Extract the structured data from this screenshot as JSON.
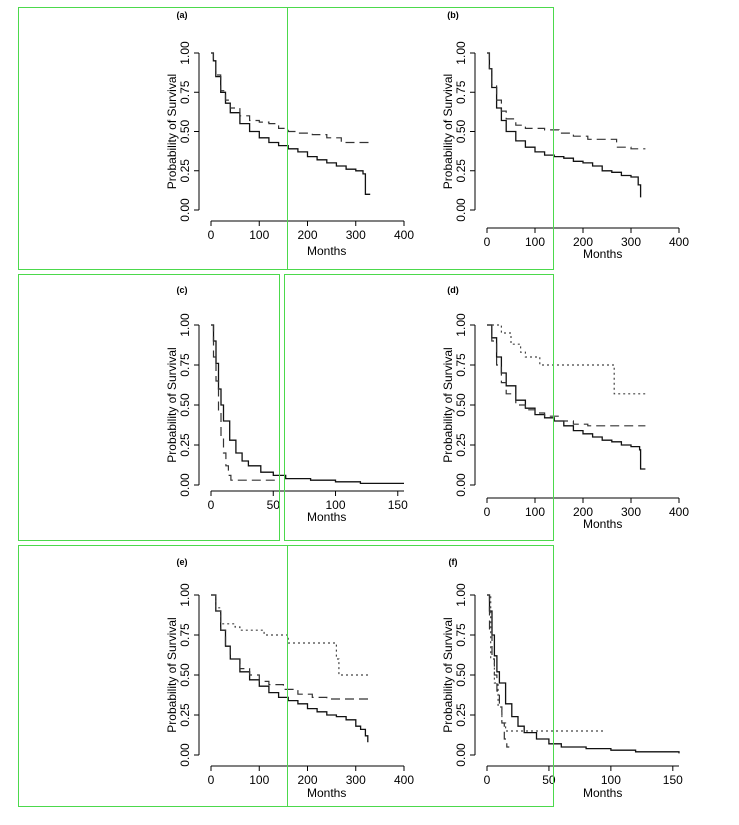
{
  "chart_data": [
    {
      "type": "line",
      "panel_label": "(a)",
      "ylabel": "Probability of Survival",
      "xlabel": "Months",
      "xlim": [
        0,
        400
      ],
      "ylim": [
        0,
        1
      ],
      "xticks": [
        "0",
        "100",
        "200",
        "300",
        "400"
      ],
      "yticks": [
        "0.00",
        "0.25",
        "0.50",
        "0.75",
        "1.00"
      ],
      "series": [
        {
          "name": "solid",
          "style": "solid",
          "x": [
            0,
            5,
            10,
            20,
            30,
            40,
            60,
            80,
            100,
            120,
            140,
            160,
            180,
            200,
            220,
            240,
            260,
            280,
            300,
            315,
            320,
            330
          ],
          "y": [
            1.0,
            0.95,
            0.85,
            0.75,
            0.68,
            0.62,
            0.55,
            0.5,
            0.46,
            0.43,
            0.41,
            0.39,
            0.37,
            0.34,
            0.32,
            0.3,
            0.28,
            0.26,
            0.25,
            0.23,
            0.1,
            0.1
          ]
        },
        {
          "name": "dashed",
          "style": "dashed",
          "x": [
            0,
            5,
            10,
            20,
            30,
            40,
            60,
            80,
            100,
            120,
            140,
            160,
            180,
            210,
            240,
            270,
            300,
            330
          ],
          "y": [
            1.0,
            0.95,
            0.86,
            0.76,
            0.7,
            0.65,
            0.6,
            0.57,
            0.56,
            0.55,
            0.52,
            0.5,
            0.49,
            0.48,
            0.46,
            0.43,
            0.43,
            0.43
          ]
        }
      ]
    },
    {
      "type": "line",
      "panel_label": "(b)",
      "ylabel": "Probability of Survival",
      "xlabel": "Months",
      "xlim": [
        0,
        400
      ],
      "ylim": [
        0,
        1
      ],
      "xticks": [
        "0",
        "100",
        "200",
        "300",
        "400"
      ],
      "yticks": [
        "0.00",
        "0.25",
        "0.50",
        "0.75",
        "1.00"
      ],
      "series": [
        {
          "name": "solid",
          "style": "solid",
          "x": [
            0,
            5,
            10,
            20,
            30,
            40,
            60,
            80,
            100,
            120,
            140,
            160,
            180,
            200,
            220,
            240,
            260,
            280,
            300,
            315,
            320
          ],
          "y": [
            1.0,
            0.9,
            0.78,
            0.65,
            0.57,
            0.5,
            0.44,
            0.4,
            0.37,
            0.35,
            0.34,
            0.33,
            0.31,
            0.3,
            0.28,
            0.25,
            0.24,
            0.22,
            0.21,
            0.16,
            0.08
          ]
        },
        {
          "name": "dashed",
          "style": "dashed",
          "x": [
            0,
            5,
            10,
            20,
            30,
            40,
            60,
            80,
            100,
            120,
            150,
            180,
            210,
            240,
            270,
            300,
            330
          ],
          "y": [
            1.0,
            0.9,
            0.8,
            0.7,
            0.63,
            0.58,
            0.54,
            0.52,
            0.52,
            0.51,
            0.49,
            0.47,
            0.45,
            0.45,
            0.4,
            0.39,
            0.39
          ]
        }
      ]
    },
    {
      "type": "line",
      "panel_label": "(c)",
      "ylabel": "Probability of Survival",
      "xlabel": "Months",
      "xlim": [
        0,
        155
      ],
      "ylim": [
        0,
        1
      ],
      "xticks": [
        "0",
        "50",
        "100",
        "150"
      ],
      "yticks": [
        "0.00",
        "0.25",
        "0.50",
        "0.75",
        "1.00"
      ],
      "series": [
        {
          "name": "solid",
          "style": "solid",
          "x": [
            0,
            2,
            4,
            6,
            8,
            10,
            15,
            20,
            25,
            30,
            40,
            50,
            60,
            80,
            100,
            120,
            155
          ],
          "y": [
            1.0,
            0.9,
            0.76,
            0.6,
            0.5,
            0.4,
            0.28,
            0.2,
            0.15,
            0.12,
            0.08,
            0.06,
            0.04,
            0.03,
            0.02,
            0.01,
            0.01
          ]
        },
        {
          "name": "dashed",
          "style": "dashed",
          "x": [
            0,
            2,
            4,
            6,
            8,
            10,
            12,
            14,
            16,
            55
          ],
          "y": [
            1.0,
            0.8,
            0.65,
            0.45,
            0.3,
            0.2,
            0.12,
            0.06,
            0.03,
            0.03
          ]
        }
      ]
    },
    {
      "type": "line",
      "panel_label": "(d)",
      "ylabel": "Probability of Survival",
      "xlabel": "Months",
      "xlim": [
        0,
        400
      ],
      "ylim": [
        0,
        1
      ],
      "xticks": [
        "0",
        "100",
        "200",
        "300",
        "400"
      ],
      "yticks": [
        "0.00",
        "0.25",
        "0.50",
        "0.75",
        "1.00"
      ],
      "series": [
        {
          "name": "solid",
          "style": "solid",
          "x": [
            0,
            10,
            20,
            30,
            40,
            60,
            80,
            100,
            120,
            140,
            160,
            180,
            200,
            220,
            240,
            260,
            280,
            300,
            318,
            320,
            330
          ],
          "y": [
            1.0,
            0.92,
            0.8,
            0.7,
            0.62,
            0.53,
            0.48,
            0.44,
            0.42,
            0.4,
            0.37,
            0.34,
            0.32,
            0.3,
            0.28,
            0.27,
            0.25,
            0.24,
            0.22,
            0.1,
            0.1
          ]
        },
        {
          "name": "dashed",
          "style": "dashed",
          "x": [
            0,
            10,
            20,
            30,
            40,
            60,
            80,
            100,
            120,
            150,
            180,
            210,
            240,
            270,
            300,
            330
          ],
          "y": [
            1.0,
            0.9,
            0.75,
            0.64,
            0.57,
            0.5,
            0.47,
            0.45,
            0.43,
            0.4,
            0.38,
            0.37,
            0.37,
            0.37,
            0.37,
            0.37
          ]
        },
        {
          "name": "dotted",
          "style": "dotted",
          "x": [
            0,
            20,
            30,
            40,
            50,
            60,
            70,
            80,
            100,
            110,
            120,
            150,
            200,
            250,
            260,
            265,
            300,
            330
          ],
          "y": [
            1.0,
            1.0,
            0.95,
            0.95,
            0.88,
            0.88,
            0.83,
            0.8,
            0.8,
            0.75,
            0.75,
            0.75,
            0.75,
            0.75,
            0.75,
            0.57,
            0.57,
            0.57
          ]
        }
      ]
    },
    {
      "type": "line",
      "panel_label": "(e)",
      "ylabel": "Probability of Survival",
      "xlabel": "Months",
      "xlim": [
        0,
        400
      ],
      "ylim": [
        0,
        1
      ],
      "xticks": [
        "0",
        "100",
        "200",
        "300",
        "400"
      ],
      "yticks": [
        "0.00",
        "0.25",
        "0.50",
        "0.75",
        "1.00"
      ],
      "series": [
        {
          "name": "solid",
          "style": "solid",
          "x": [
            0,
            10,
            20,
            30,
            40,
            60,
            80,
            100,
            120,
            140,
            160,
            180,
            200,
            220,
            240,
            260,
            280,
            300,
            310,
            320,
            325
          ],
          "y": [
            1.0,
            0.9,
            0.78,
            0.68,
            0.6,
            0.52,
            0.47,
            0.43,
            0.39,
            0.36,
            0.34,
            0.32,
            0.29,
            0.27,
            0.25,
            0.24,
            0.22,
            0.18,
            0.16,
            0.12,
            0.08
          ]
        },
        {
          "name": "dashed",
          "style": "dashed",
          "x": [
            0,
            10,
            20,
            30,
            40,
            60,
            80,
            100,
            120,
            150,
            180,
            210,
            240,
            270,
            300,
            330
          ],
          "y": [
            1.0,
            0.9,
            0.78,
            0.68,
            0.6,
            0.54,
            0.5,
            0.46,
            0.44,
            0.41,
            0.38,
            0.36,
            0.35,
            0.35,
            0.35,
            0.35
          ]
        },
        {
          "name": "dotted",
          "style": "dotted",
          "x": [
            0,
            10,
            20,
            50,
            60,
            100,
            110,
            150,
            160,
            200,
            250,
            260,
            265,
            300,
            330
          ],
          "y": [
            1.0,
            0.92,
            0.82,
            0.8,
            0.78,
            0.78,
            0.75,
            0.75,
            0.7,
            0.7,
            0.7,
            0.6,
            0.5,
            0.5,
            0.5
          ]
        }
      ]
    },
    {
      "type": "line",
      "panel_label": "(f)",
      "ylabel": "Probability of Survival",
      "xlabel": "Months",
      "xlim": [
        0,
        155
      ],
      "ylim": [
        0,
        1
      ],
      "xticks": [
        "0",
        "50",
        "100",
        "150"
      ],
      "yticks": [
        "0.00",
        "0.25",
        "0.50",
        "0.75",
        "1.00"
      ],
      "series": [
        {
          "name": "solid",
          "style": "solid",
          "x": [
            0,
            2,
            4,
            6,
            8,
            10,
            15,
            20,
            25,
            30,
            40,
            50,
            60,
            80,
            100,
            120,
            155
          ],
          "y": [
            1.0,
            0.9,
            0.75,
            0.62,
            0.52,
            0.45,
            0.32,
            0.24,
            0.18,
            0.14,
            0.1,
            0.07,
            0.05,
            0.04,
            0.03,
            0.02,
            0.01
          ]
        },
        {
          "name": "dashed",
          "style": "dashed",
          "x": [
            0,
            2,
            4,
            6,
            8,
            10,
            12,
            14,
            16,
            18
          ],
          "y": [
            1.0,
            0.78,
            0.6,
            0.5,
            0.4,
            0.3,
            0.2,
            0.1,
            0.05,
            0.05
          ]
        },
        {
          "name": "dotted",
          "style": "dotted",
          "x": [
            0,
            3,
            6,
            9,
            12,
            15,
            20,
            95
          ],
          "y": [
            1.0,
            0.6,
            0.45,
            0.3,
            0.2,
            0.15,
            0.15,
            0.15
          ]
        }
      ]
    }
  ]
}
